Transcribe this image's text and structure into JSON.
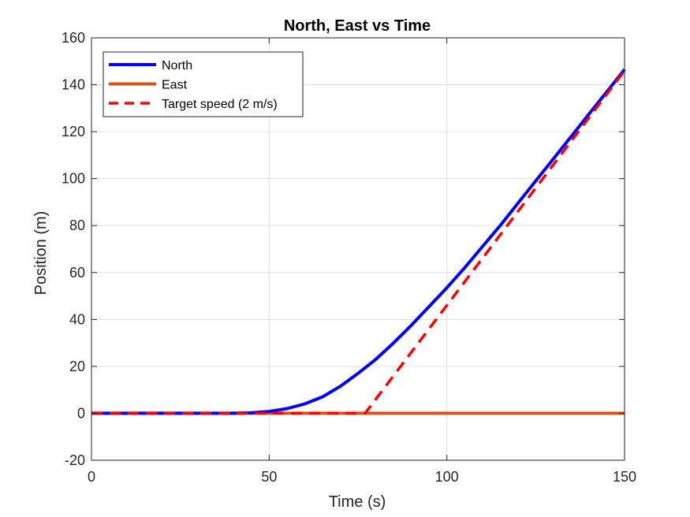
{
  "chart_data": {
    "type": "line",
    "title": "North, East vs Time",
    "xlabel": "Time (s)",
    "ylabel": "Position (m)",
    "xlim": [
      0,
      150
    ],
    "ylim": [
      -20,
      160
    ],
    "xticks": [
      0,
      50,
      100,
      150
    ],
    "yticks": [
      -20,
      0,
      20,
      40,
      60,
      80,
      100,
      120,
      140,
      160
    ],
    "grid": true,
    "legend_location": "top-left",
    "series": [
      {
        "name": "North",
        "color": "#0000ff",
        "style": "solid",
        "x": [
          0,
          40,
          45,
          50,
          55,
          60,
          65,
          70,
          75,
          80,
          85,
          90,
          95,
          100,
          105,
          110,
          115,
          120,
          125,
          130,
          135,
          140,
          145,
          150
        ],
        "y": [
          0,
          0,
          0.2,
          0.8,
          2,
          4,
          7,
          11.5,
          17,
          23,
          30,
          37.5,
          45.5,
          53.5,
          62,
          71,
          80,
          89.5,
          99,
          108.5,
          118,
          127.5,
          137,
          146.5
        ]
      },
      {
        "name": "East",
        "color": "#d95319",
        "style": "solid",
        "x": [
          0,
          150
        ],
        "y": [
          0,
          0
        ]
      },
      {
        "name": "Target speed (2 m/s)",
        "color": "#ff0000",
        "style": "dashed",
        "x": [
          0,
          77,
          150
        ],
        "y": [
          0,
          0,
          146
        ]
      }
    ]
  }
}
